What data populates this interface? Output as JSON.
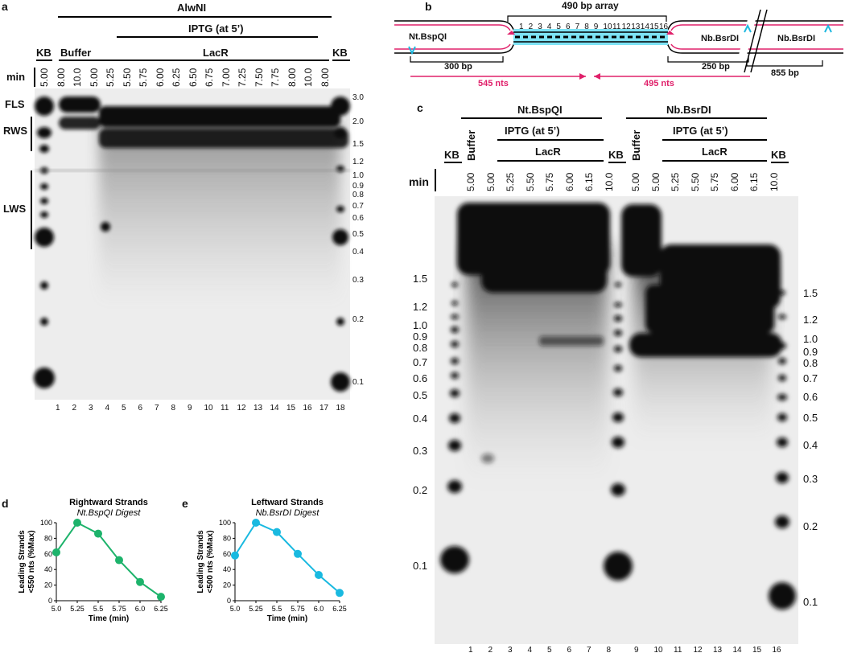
{
  "panels": {
    "a": "a",
    "b": "b",
    "c": "c",
    "d": "d",
    "e": "e"
  },
  "a": {
    "enzyme": "AlwNI",
    "iptg": "IPTG (at 5’)",
    "kb": "KB",
    "buffer": "Buffer",
    "lacr": "LacR",
    "min": "min",
    "times": [
      "5.00",
      "8.00",
      "10.0",
      "5.00",
      "5.25",
      "5.50",
      "5.75",
      "6.00",
      "6.25",
      "6.50",
      "6.75",
      "7.00",
      "7.25",
      "7.50",
      "7.75",
      "8.00",
      "10.0",
      "8.00"
    ],
    "lanes": [
      "1",
      "2",
      "3",
      "4",
      "5",
      "6",
      "7",
      "8",
      "9",
      "10",
      "11",
      "12",
      "13",
      "14",
      "15",
      "16",
      "17",
      "18"
    ],
    "species": [
      "FLS",
      "RWS",
      "LWS"
    ],
    "markers": [
      "3.0",
      "2.0",
      "1.5",
      "1.2",
      "1.0",
      "0.9",
      "0.8",
      "0.7",
      "0.6",
      "0.5",
      "0.4",
      "0.3",
      "0.2",
      "0.1"
    ]
  },
  "b": {
    "array": "490 bp array",
    "nums": [
      "1",
      "2",
      "3",
      "4",
      "5",
      "6",
      "7",
      "8",
      "9",
      "10",
      "11",
      "12",
      "13",
      "14",
      "15",
      "16"
    ],
    "ntbspqi": "Nt.BspQI",
    "nbbsrdi1": "Nb.BsrDI",
    "nbbsrdi2": "Nb.BsrDI",
    "bp300": "300 bp",
    "bp250": "250 bp",
    "bp855": "855 bp",
    "nts545": "545 nts",
    "nts495": "495 nts"
  },
  "c": {
    "ntbspqi": "Nt.BspQI",
    "nbbsrdi": "Nb.BsrDI",
    "iptg": "IPTG (at 5’)",
    "lacr": "LacR",
    "kb": "KB",
    "buffer": "Buffer",
    "min": "min",
    "times1": [
      "5.00",
      "5.00",
      "5.25",
      "5.50",
      "5.75",
      "6.00",
      "6.15",
      "10.0"
    ],
    "times2": [
      "5.00",
      "5.00",
      "5.25",
      "5.50",
      "5.75",
      "6.00",
      "6.15",
      "10.0"
    ],
    "lanes": [
      "1",
      "2",
      "3",
      "4",
      "5",
      "6",
      "7",
      "8",
      "9",
      "10",
      "11",
      "12",
      "13",
      "14",
      "15",
      "16"
    ],
    "left_markers": [
      "1.5",
      "1.2",
      "1.0",
      "0.9",
      "0.8",
      "0.7",
      "0.6",
      "0.5",
      "0.4",
      "0.3",
      "0.2",
      "0.1"
    ],
    "right_markers": [
      "1.5",
      "1.2",
      "1.0",
      "0.9",
      "0.8",
      "0.7",
      "0.6",
      "0.5",
      "0.4",
      "0.3",
      "0.2",
      "0.1"
    ]
  },
  "chart_data": [
    {
      "type": "line",
      "title": "Rightward Strands",
      "subtitle": "Nt.BspQI Digest",
      "xlabel": "Time (min)",
      "ylabel": "Leading Strands <550 nts (%Max)",
      "x": [
        5.0,
        5.25,
        5.5,
        5.75,
        6.0,
        6.25
      ],
      "series": [
        {
          "values": [
            62,
            100,
            86,
            52,
            24,
            5
          ]
        }
      ],
      "xticks": [
        "5.0",
        "5.25",
        "5.5",
        "5.75",
        "6.0",
        "6.25"
      ],
      "yticks": [
        "0",
        "20",
        "40",
        "60",
        "80",
        "100"
      ],
      "ylim": [
        0,
        100
      ],
      "xlim": [
        5.0,
        6.25
      ],
      "color": "#1db36b"
    },
    {
      "type": "line",
      "title": "Leftward Strands",
      "subtitle": "Nb.BsrDI Digest",
      "xlabel": "Time (min)",
      "ylabel": "Leading Strands <500 nts (%Max)",
      "x": [
        5.0,
        5.25,
        5.5,
        5.75,
        6.0,
        6.25
      ],
      "series": [
        {
          "values": [
            58,
            100,
            88,
            60,
            33,
            10
          ]
        }
      ],
      "xticks": [
        "5.0",
        "5.25",
        "5.5",
        "5.75",
        "6.0",
        "6.25"
      ],
      "yticks": [
        "0",
        "20",
        "40",
        "60",
        "80",
        "100"
      ],
      "ylim": [
        0,
        100
      ],
      "xlim": [
        5.0,
        6.25
      ],
      "color": "#19b9e0"
    }
  ],
  "colors": {
    "magenta": "#e0206a",
    "cyan": "#1fb8e0",
    "green": "#1db36b"
  }
}
